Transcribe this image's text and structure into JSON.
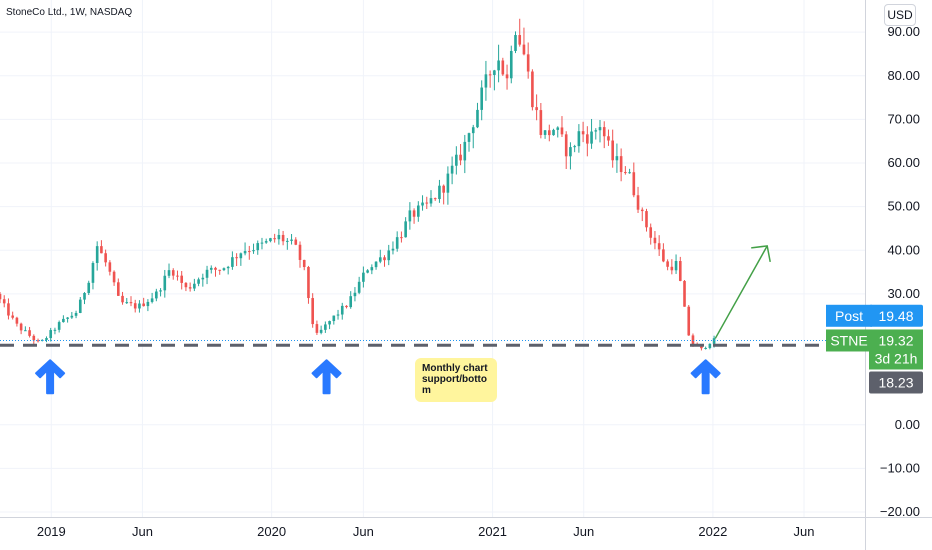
{
  "header": {
    "symbol_title": "StoneCo Ltd., 1W, NASDAQ",
    "currency_button": "USD"
  },
  "annotation": {
    "note_text": "Monthly chart support/botto m"
  },
  "price_tags": {
    "post_label": "Post",
    "post_value": "19.48",
    "symbol_label": "STNE",
    "last_value": "19.32",
    "countdown": "3d 21h",
    "support_value": "18.23"
  },
  "colors": {
    "up": "#26a69a",
    "down": "#ef5350",
    "post": "#2196f3",
    "last": "#4caf50",
    "support_tag": "#5d606b",
    "support_line": "#5d606b",
    "arrow_up": "#2979ff",
    "projection": "#43a047",
    "note_bg": "#fff59d"
  },
  "chart_data": {
    "type": "candlestick",
    "title": "StoneCo Ltd., 1W, NASDAQ",
    "ylim": [
      -20,
      96
    ],
    "y_ticks": [
      "90.00",
      "80.00",
      "70.00",
      "60.00",
      "50.00",
      "40.00",
      "30.00",
      "0.00",
      "−10.00",
      "−20.00"
    ],
    "y_tick_values": [
      90,
      80,
      70,
      60,
      50,
      40,
      30,
      0,
      -10,
      -20
    ],
    "x_ticks": [
      "2019",
      "Jun",
      "2020",
      "Jun",
      "2021",
      "Jun",
      "2022",
      "Jun"
    ],
    "x_tick_dates": [
      "2019-01-01",
      "2019-06-01",
      "2020-01-01",
      "2020-06-01",
      "2021-01-01",
      "2021-06-01",
      "2022-01-01",
      "2022-06-01"
    ],
    "x_range": [
      "2018-10-08",
      "2022-09-10"
    ],
    "support_level": 18.23,
    "post_price": 19.48,
    "last_price": 19.32,
    "price_path": [
      [
        "2018-10-08",
        30
      ],
      [
        "2018-11-10",
        23
      ],
      [
        "2018-12-20",
        18.5
      ],
      [
        "2019-01-20",
        23
      ],
      [
        "2019-02-20",
        26
      ],
      [
        "2019-03-10",
        33
      ],
      [
        "2019-03-25",
        41
      ],
      [
        "2019-04-12",
        36
      ],
      [
        "2019-05-01",
        28
      ],
      [
        "2019-06-01",
        27
      ],
      [
        "2019-07-01",
        30
      ],
      [
        "2019-07-25",
        36
      ],
      [
        "2019-08-20",
        31
      ],
      [
        "2019-09-20",
        35
      ],
      [
        "2019-10-20",
        36
      ],
      [
        "2019-11-20",
        40
      ],
      [
        "2019-12-20",
        41
      ],
      [
        "2020-01-20",
        43
      ],
      [
        "2020-02-15",
        41
      ],
      [
        "2020-03-01",
        36
      ],
      [
        "2020-03-20",
        20
      ],
      [
        "2020-04-15",
        24
      ],
      [
        "2020-05-15",
        28
      ],
      [
        "2020-06-15",
        36
      ],
      [
        "2020-07-15",
        39
      ],
      [
        "2020-08-10",
        44
      ],
      [
        "2020-08-25",
        48
      ],
      [
        "2020-09-20",
        50
      ],
      [
        "2020-10-20",
        55
      ],
      [
        "2020-11-20",
        63
      ],
      [
        "2020-12-20",
        75
      ],
      [
        "2021-01-15",
        85
      ],
      [
        "2021-02-01",
        79
      ],
      [
        "2021-02-12",
        93
      ],
      [
        "2021-03-01",
        85
      ],
      [
        "2021-03-15",
        75
      ],
      [
        "2021-04-01",
        66
      ],
      [
        "2021-04-20",
        68
      ],
      [
        "2021-05-15",
        62
      ],
      [
        "2021-06-01",
        67
      ],
      [
        "2021-06-20",
        66
      ],
      [
        "2021-07-05",
        69
      ],
      [
        "2021-07-25",
        61
      ],
      [
        "2021-08-20",
        58
      ],
      [
        "2021-09-15",
        47
      ],
      [
        "2021-10-10",
        40
      ],
      [
        "2021-10-25",
        36
      ],
      [
        "2021-11-10",
        37
      ],
      [
        "2021-11-20",
        28
      ],
      [
        "2021-12-01",
        19
      ],
      [
        "2021-12-20",
        17.2
      ],
      [
        "2022-01-05",
        19.3
      ]
    ],
    "projection": [
      [
        "2022-01-05",
        23
      ],
      [
        "2022-04-01",
        41
      ]
    ],
    "support_arrows": [
      "2018-12-30",
      "2020-04-01",
      "2021-12-20"
    ]
  }
}
